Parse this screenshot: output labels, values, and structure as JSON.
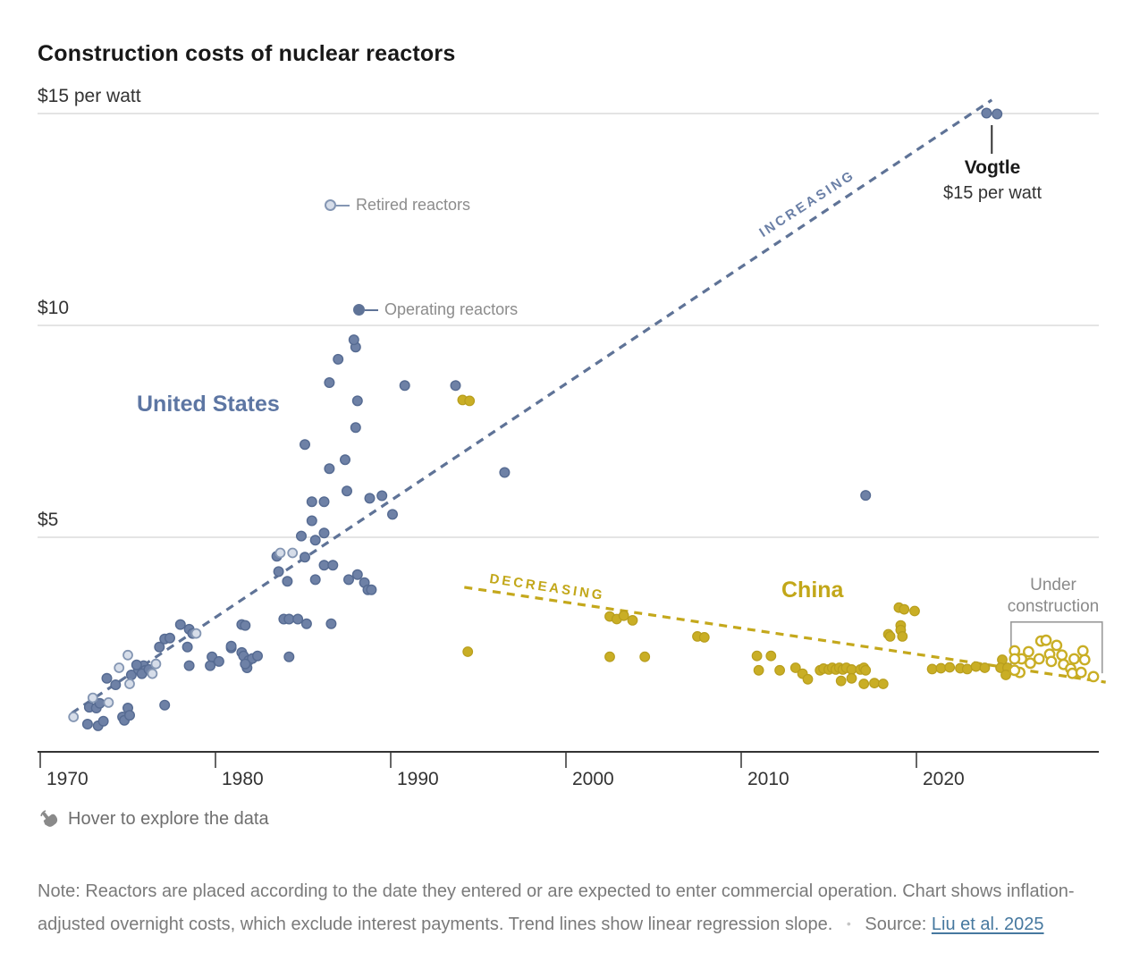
{
  "title": "Construction costs of nuclear reactors",
  "legend": {
    "retired": "Retired reactors",
    "operating": "Operating reactors"
  },
  "annotations": {
    "united_states": "United States",
    "china": "China",
    "increasing": "INCREASING",
    "decreasing": "DECREASING",
    "under_construction_line1": "Under",
    "under_construction_line2": "construction",
    "vogtle_name": "Vogtle",
    "vogtle_sub": "$15 per watt"
  },
  "footer": {
    "hover": "Hover to explore the data",
    "note": "Note: Reactors are placed according to the date they entered or are expected to enter commercial operation. Chart shows inflation-adjusted overnight costs, which exclude interest payments. Trend lines show linear regression slope.",
    "bullet": "•",
    "source_label": "Source:",
    "source_link": "Liu et al. 2025"
  },
  "colors": {
    "us_fill": "#6e81a6",
    "us_stroke": "#566b92",
    "retired_fill": "#d6dde9",
    "retired_stroke": "#8496b3",
    "china_fill": "#c9ae25",
    "china_stroke": "#b89e1d",
    "trend_us": "#5f7397",
    "trend_china": "#c4a81c",
    "grid": "#e4e4e4",
    "axis": "#333333",
    "box": "#9a9a9a"
  },
  "chart_data": {
    "type": "scatter",
    "title": "Construction costs of nuclear reactors",
    "x": {
      "ticks": [
        1970,
        1980,
        1990,
        2000,
        2010,
        2020
      ],
      "domain": [
        1969.8,
        2030.9
      ]
    },
    "y": {
      "unit": "$ per watt",
      "domain": [
        0,
        15.6
      ],
      "gridlines": [
        {
          "value": 15,
          "text": "$15 per watt"
        },
        {
          "value": 10,
          "text": "$10"
        },
        {
          "value": 5,
          "text": "$5"
        }
      ]
    },
    "series": [
      {
        "id": "us_operating",
        "name": "United States — operating reactors",
        "style": "filled-blue",
        "points": [
          [
            1972.7,
            0.59
          ],
          [
            1973.3,
            0.55
          ],
          [
            1973.6,
            0.66
          ],
          [
            1972.8,
            0.99
          ],
          [
            1973.2,
            0.97
          ],
          [
            1973.4,
            1.08
          ],
          [
            1974.7,
            0.76
          ],
          [
            1974.8,
            0.68
          ],
          [
            1975.0,
            0.97
          ],
          [
            1975.1,
            0.8
          ],
          [
            1977.1,
            1.04
          ],
          [
            1974.3,
            1.52
          ],
          [
            1973.8,
            1.67
          ],
          [
            1975.2,
            1.75
          ],
          [
            1975.6,
            1.88
          ],
          [
            1975.9,
            1.97
          ],
          [
            1976.0,
            1.86
          ],
          [
            1975.5,
            1.99
          ],
          [
            1975.8,
            1.78
          ],
          [
            1976.2,
            1.88
          ],
          [
            1978.5,
            1.97
          ],
          [
            1979.7,
            1.97
          ],
          [
            1981.8,
            1.92
          ],
          [
            1976.8,
            2.41
          ],
          [
            1977.1,
            2.6
          ],
          [
            1977.4,
            2.62
          ],
          [
            1978.0,
            2.94
          ],
          [
            1978.5,
            2.83
          ],
          [
            1978.7,
            2.73
          ],
          [
            1978.4,
            2.41
          ],
          [
            1979.8,
            2.18
          ],
          [
            1980.2,
            2.07
          ],
          [
            1980.9,
            2.39
          ],
          [
            1980.9,
            2.43
          ],
          [
            1981.5,
            2.28
          ],
          [
            1981.6,
            2.2
          ],
          [
            1981.9,
            2.09
          ],
          [
            1982.1,
            2.14
          ],
          [
            1982.4,
            2.2
          ],
          [
            1981.7,
            2.01
          ],
          [
            1984.2,
            2.18
          ],
          [
            1981.5,
            2.94
          ],
          [
            1981.7,
            2.92
          ],
          [
            1983.9,
            3.07
          ],
          [
            1984.2,
            3.07
          ],
          [
            1984.7,
            3.07
          ],
          [
            1985.2,
            2.96
          ],
          [
            1986.6,
            2.96
          ],
          [
            1983.6,
            4.19
          ],
          [
            1984.1,
            3.96
          ],
          [
            1985.7,
            4.0
          ],
          [
            1983.5,
            4.55
          ],
          [
            1985.1,
            4.53
          ],
          [
            1986.2,
            4.34
          ],
          [
            1986.7,
            4.34
          ],
          [
            1987.6,
            4.0
          ],
          [
            1988.1,
            4.12
          ],
          [
            1988.5,
            3.93
          ],
          [
            1988.7,
            3.76
          ],
          [
            1988.9,
            3.76
          ],
          [
            1984.9,
            5.03
          ],
          [
            1985.5,
            5.39
          ],
          [
            1985.7,
            4.93
          ],
          [
            1986.2,
            5.1
          ],
          [
            1985.5,
            5.84
          ],
          [
            1986.2,
            5.84
          ],
          [
            1988.8,
            5.92
          ],
          [
            1989.5,
            5.98
          ],
          [
            1990.1,
            5.54
          ],
          [
            1987.5,
            6.09
          ],
          [
            1986.5,
            6.62
          ],
          [
            1987.4,
            6.83
          ],
          [
            1985.1,
            7.19
          ],
          [
            1988.0,
            7.59
          ],
          [
            1988.1,
            8.22
          ],
          [
            1986.5,
            8.65
          ],
          [
            1987.0,
            9.2
          ],
          [
            1988.0,
            9.49
          ],
          [
            1987.9,
            9.66
          ],
          [
            1990.8,
            8.58
          ],
          [
            1993.7,
            8.58
          ],
          [
            1996.5,
            6.53
          ],
          [
            2017.1,
            5.99
          ],
          [
            2024.0,
            15.01
          ],
          [
            2024.6,
            14.99
          ]
        ]
      },
      {
        "id": "us_retired",
        "name": "United States — retired reactors",
        "style": "open-blue",
        "points": [
          [
            1971.9,
            0.76
          ],
          [
            1973.0,
            1.21
          ],
          [
            1973.9,
            1.1
          ],
          [
            1974.5,
            1.92
          ],
          [
            1975.0,
            2.22
          ],
          [
            1975.1,
            1.54
          ],
          [
            1976.4,
            1.78
          ],
          [
            1976.6,
            2.01
          ],
          [
            1978.9,
            2.73
          ],
          [
            1983.7,
            4.63
          ],
          [
            1984.4,
            4.63
          ]
        ]
      },
      {
        "id": "china_operating",
        "name": "China — operating reactors",
        "style": "filled-yellow",
        "points": [
          [
            1994.1,
            8.24
          ],
          [
            1994.5,
            8.22
          ],
          [
            1994.4,
            2.3
          ],
          [
            2002.5,
            3.13
          ],
          [
            2002.9,
            3.07
          ],
          [
            2003.3,
            3.15
          ],
          [
            2003.8,
            3.04
          ],
          [
            2002.5,
            2.18
          ],
          [
            2004.5,
            2.18
          ],
          [
            2007.5,
            2.66
          ],
          [
            2007.9,
            2.64
          ],
          [
            2010.9,
            2.2
          ],
          [
            2011.7,
            2.2
          ],
          [
            2011.0,
            1.86
          ],
          [
            2012.2,
            1.86
          ],
          [
            2013.1,
            1.92
          ],
          [
            2013.5,
            1.78
          ],
          [
            2013.8,
            1.65
          ],
          [
            2014.5,
            1.86
          ],
          [
            2014.7,
            1.9
          ],
          [
            2015.0,
            1.88
          ],
          [
            2015.2,
            1.92
          ],
          [
            2015.4,
            1.88
          ],
          [
            2015.6,
            1.92
          ],
          [
            2015.8,
            1.88
          ],
          [
            2016.0,
            1.92
          ],
          [
            2016.3,
            1.88
          ],
          [
            2015.7,
            1.61
          ],
          [
            2016.3,
            1.67
          ],
          [
            2016.8,
            1.88
          ],
          [
            2017.0,
            1.92
          ],
          [
            2017.1,
            1.86
          ],
          [
            2017.0,
            1.54
          ],
          [
            2017.6,
            1.56
          ],
          [
            2018.1,
            1.54
          ],
          [
            2018.4,
            2.71
          ],
          [
            2018.5,
            2.66
          ],
          [
            2019.1,
            2.92
          ],
          [
            2019.1,
            2.81
          ],
          [
            2019.2,
            2.66
          ],
          [
            2019.0,
            3.34
          ],
          [
            2019.3,
            3.3
          ],
          [
            2019.9,
            3.26
          ],
          [
            2020.9,
            1.89
          ],
          [
            2021.4,
            1.91
          ],
          [
            2021.9,
            1.93
          ],
          [
            2022.5,
            1.91
          ],
          [
            2022.9,
            1.89
          ],
          [
            2023.4,
            1.95
          ],
          [
            2023.9,
            1.92
          ],
          [
            2024.9,
            2.11
          ],
          [
            2024.8,
            1.92
          ],
          [
            2025.2,
            1.92
          ],
          [
            2025.1,
            1.75
          ]
        ]
      },
      {
        "id": "china_under_construction",
        "name": "China — under construction",
        "style": "open-yellow",
        "points": [
          [
            2027.1,
            2.55
          ],
          [
            2027.4,
            2.57
          ],
          [
            2028.0,
            2.45
          ],
          [
            2025.6,
            2.32
          ],
          [
            2026.4,
            2.3
          ],
          [
            2027.0,
            2.13
          ],
          [
            2026.0,
            2.13
          ],
          [
            2026.5,
            2.03
          ],
          [
            2025.6,
            2.13
          ],
          [
            2027.6,
            2.24
          ],
          [
            2027.7,
            2.07
          ],
          [
            2028.3,
            2.22
          ],
          [
            2028.4,
            2.0
          ],
          [
            2028.8,
            1.9
          ],
          [
            2029.0,
            2.13
          ],
          [
            2029.5,
            2.32
          ],
          [
            2029.6,
            2.11
          ],
          [
            2028.9,
            1.79
          ],
          [
            2029.4,
            1.81
          ],
          [
            2030.1,
            1.71
          ],
          [
            2025.9,
            1.81
          ],
          [
            2025.6,
            1.86
          ]
        ]
      }
    ],
    "trend_lines": [
      {
        "id": "us",
        "label": "INCREASING",
        "from": [
          1971.8,
          0.85
        ],
        "to": [
          2024.3,
          15.32
        ]
      },
      {
        "id": "china",
        "label": "DECREASING",
        "from": [
          1994.2,
          3.82
        ],
        "to": [
          2030.8,
          1.58
        ]
      }
    ],
    "annotations": {
      "vogtle_point": [
        2024.3,
        15.0
      ],
      "under_construction_box": {
        "x": [
          2025.4,
          2030.6
        ],
        "y": [
          1.79,
          3.0
        ]
      }
    }
  }
}
